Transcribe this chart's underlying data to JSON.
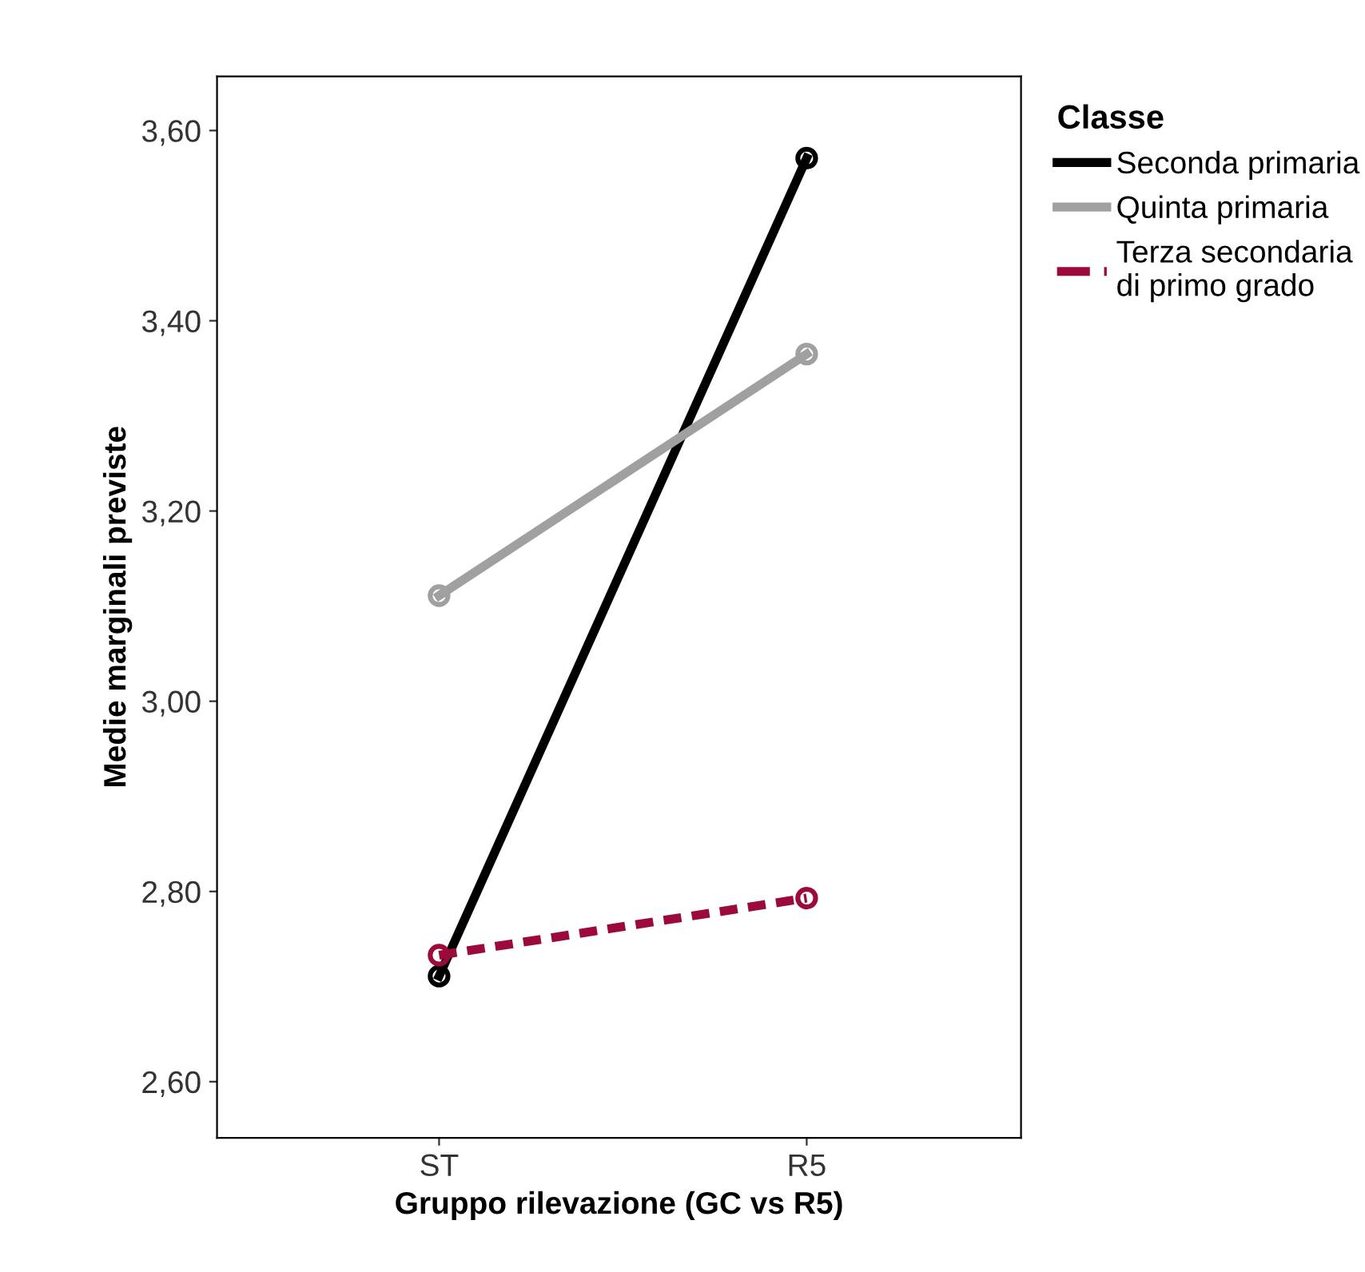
{
  "chart_data": {
    "type": "line",
    "xlabel": "Gruppo rilevazione (GC vs R5)",
    "ylabel": "Medie marginali previste",
    "legend_title": "Classe",
    "categories": [
      "ST",
      "R5"
    ],
    "series": [
      {
        "name": "Seconda primaria",
        "color": "#000000",
        "values": [
          2.711,
          3.571
        ],
        "line_style": "solid"
      },
      {
        "name": "Quinta primaria",
        "color": "#a0a0a0",
        "values": [
          3.111,
          3.365
        ],
        "line_style": "solid"
      },
      {
        "name": "Terza secondaria\ndi primo grado",
        "color": "#9b0a3a",
        "values": [
          2.733,
          2.793
        ],
        "line_style": "dashed"
      }
    ],
    "ylim": [
      2.541,
      3.657
    ],
    "yticks": [
      {
        "value": 2.6,
        "label": "2,60"
      },
      {
        "value": 2.8,
        "label": "2,80"
      },
      {
        "value": 3.0,
        "label": "3,00"
      },
      {
        "value": 3.2,
        "label": "3,20"
      },
      {
        "value": 3.4,
        "label": "3,40"
      },
      {
        "value": 3.6,
        "label": "3,60"
      }
    ],
    "marker": "circle",
    "legend": "top right",
    "grid": false
  }
}
